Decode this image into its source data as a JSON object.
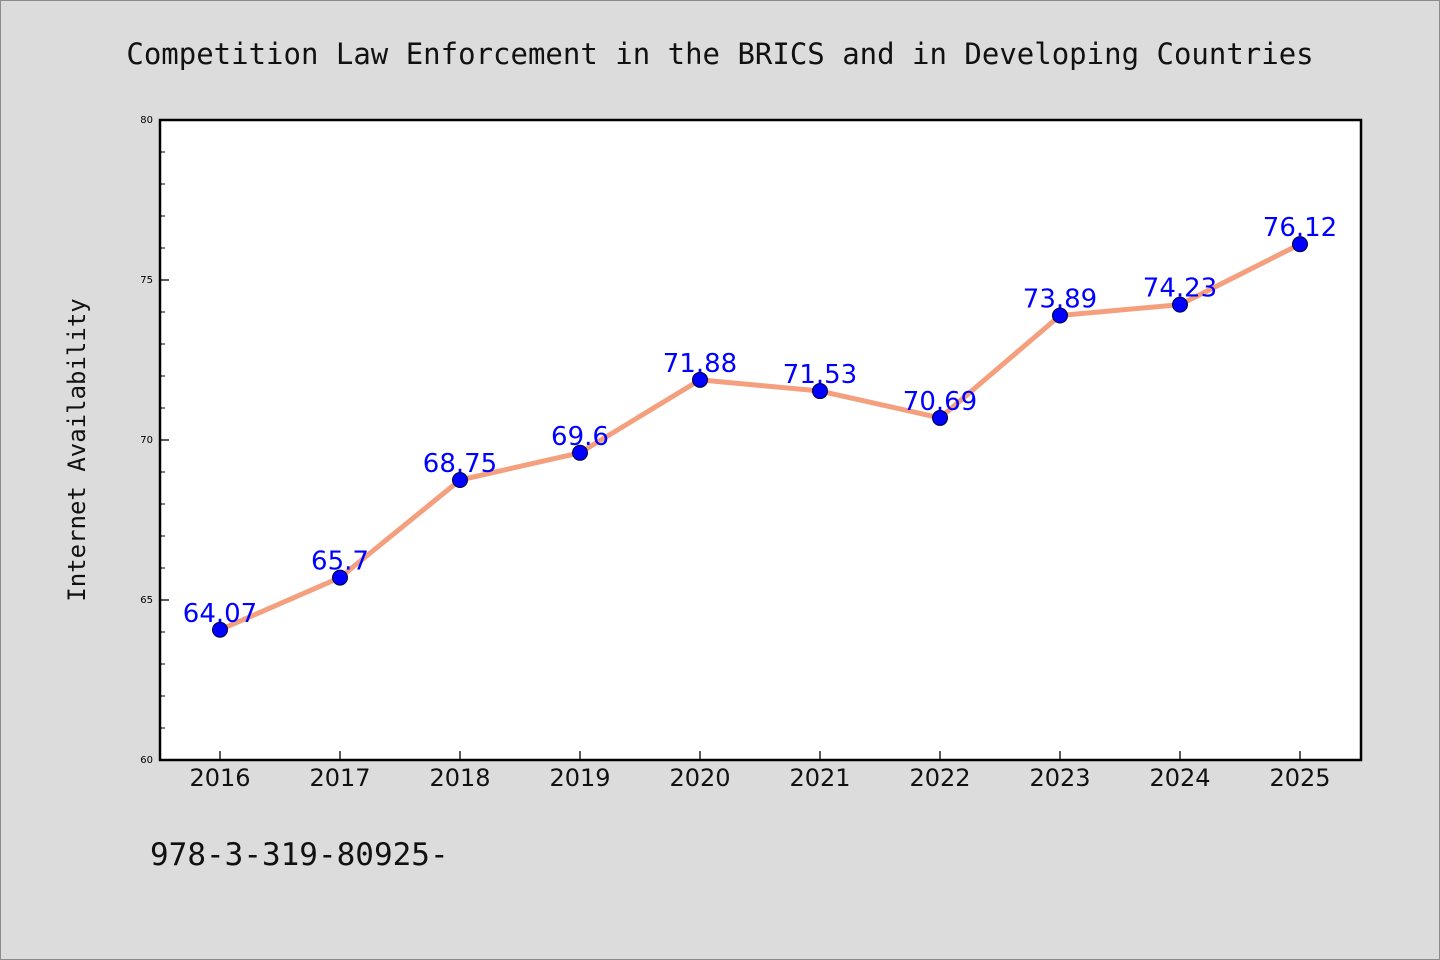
{
  "chart_data": {
    "type": "line",
    "title": "Competition Law Enforcement in the BRICS and in Developing Countries",
    "ylabel": "Internet Availability",
    "xlabel": "",
    "categories": [
      "2016",
      "2017",
      "2018",
      "2019",
      "2020",
      "2021",
      "2022",
      "2023",
      "2024",
      "2025"
    ],
    "series": [
      {
        "values": [
          64.07,
          65.7,
          68.75,
          69.6,
          71.88,
          71.53,
          70.69,
          73.89,
          74.23,
          76.12
        ],
        "labels": [
          "64.07",
          "65.7",
          "68.75",
          "69.6",
          "71.88",
          "71.53",
          "70.69",
          "73.89",
          "74.23",
          "76.12"
        ]
      }
    ],
    "ylim": [
      60,
      80
    ],
    "yticks": [
      "60",
      "65",
      "70",
      "75",
      "80"
    ],
    "grid": false,
    "legend": "none",
    "colors": {
      "line": "#f4a07f",
      "marker": "#0000ff",
      "data_label": "#0000ff",
      "plot_background": "#ffffff",
      "figure_background": "#dcdcdc"
    }
  },
  "footer": {
    "text": "978-3-319-80925-"
  }
}
